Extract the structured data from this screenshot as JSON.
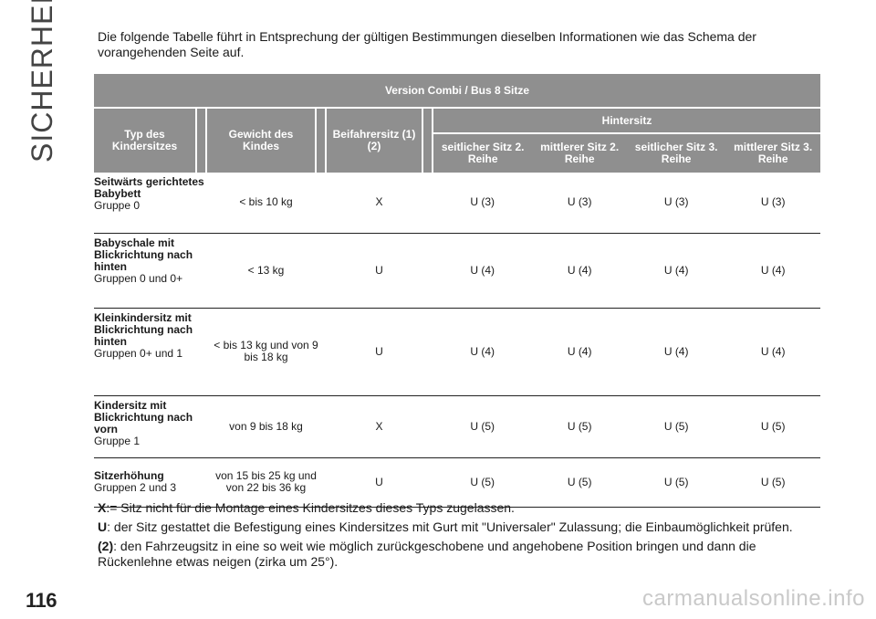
{
  "section_title": "SICHERHEIT",
  "intro": "Die folgende Tabelle führt in Entsprechung der gültigen Bestimmungen dieselben Informationen wie das Schema der vorangehenden Seite auf.",
  "table": {
    "version_header": "Version Combi / Bus 8 Sitze",
    "col_type": "Typ des Kindersitzes",
    "col_weight": "Gewicht des Kindes",
    "col_front": "Beifahrersitz (1) (2)",
    "rear_header": "Hintersitz",
    "rear_cols": [
      "seitlicher Sitz 2. Reihe",
      "mittlerer Sitz 2. Reihe",
      "seitlicher Sitz 3. Reihe",
      "mittlerer Sitz 3. Reihe"
    ],
    "rows": [
      {
        "type_bold": "Seitwärts gerichtetes Babybett",
        "type_sub": "Gruppe 0",
        "weight": "< bis 10 kg",
        "front": "X",
        "rear": [
          "U (3)",
          "U (3)",
          "U (3)",
          "U (3)"
        ]
      },
      {
        "type_bold": "Babyschale mit Blickrichtung nach hinten",
        "type_sub": "Gruppen 0 und 0+",
        "weight": "< 13 kg",
        "front": "U",
        "rear": [
          "U (4)",
          "U (4)",
          "U (4)",
          "U (4)"
        ]
      },
      {
        "type_bold": "Kleinkindersitz mit Blickrichtung nach hinten",
        "type_sub": "Gruppen 0+ und 1",
        "weight": "< bis 13 kg und von 9 bis 18 kg",
        "front": "U",
        "rear": [
          "U (4)",
          "U (4)",
          "U (4)",
          "U (4)"
        ]
      },
      {
        "type_bold": "Kindersitz mit Blickrichtung nach vorn",
        "type_sub": "Gruppe 1",
        "weight": "von 9 bis 18 kg",
        "front": "X",
        "rear": [
          "U (5)",
          "U (5)",
          "U (5)",
          "U (5)"
        ]
      },
      {
        "type_bold": "Sitzerhöhung",
        "type_sub": "Gruppen 2 und 3",
        "weight": "von 15 bis 25 kg und von 22 bis 36 kg",
        "front": "U",
        "rear": [
          "U (5)",
          "U (5)",
          "U (5)",
          "U (5)"
        ]
      }
    ]
  },
  "notes": [
    {
      "key": "X",
      "text": ":= Sitz nicht für die Montage eines Kindersitzes dieses Typs zugelassen."
    },
    {
      "key": "U",
      "text": ": der Sitz gestattet die Befestigung eines Kindersitzes mit Gurt mit \"Universaler\" Zulassung; die Einbaumöglichkeit prüfen."
    },
    {
      "key": "(2)",
      "text": ": den Fahrzeugsitz in eine so weit wie möglich zurückgeschobene und angehobene Position bringen und dann die Rückenlehne etwas neigen (zirka um 25°)."
    }
  ],
  "page_number": "116",
  "watermark": "carmanualsonline.info"
}
